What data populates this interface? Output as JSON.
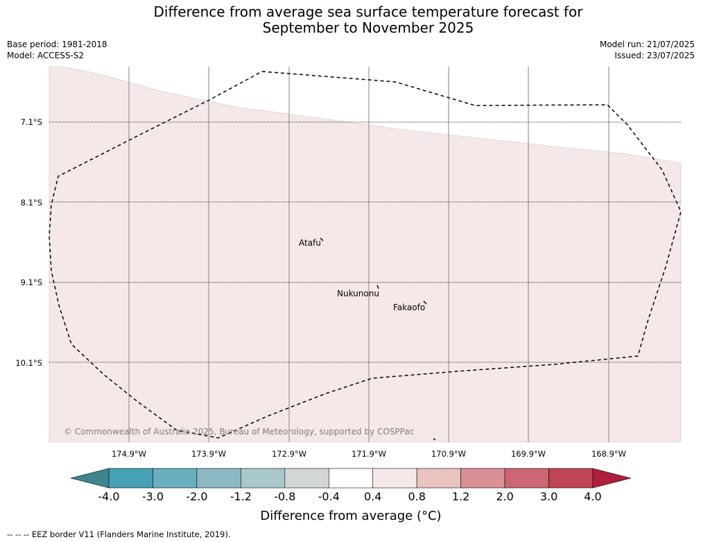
{
  "title": {
    "line1": "Difference from average sea surface temperature forecast for",
    "line2": "September to November 2025"
  },
  "meta_left": {
    "base_period": "Base period: 1981-2018",
    "model": "Model: ACCESS-S2"
  },
  "meta_right": {
    "model_run": "Model run: 21/07/2025",
    "issued": "Issued: 23/07/2025"
  },
  "map": {
    "latitude_ticks": [
      "7.1°S",
      "8.1°S",
      "9.1°S",
      "10.1°S"
    ],
    "longitude_ticks": [
      "174.9°W",
      "173.9°W",
      "172.9°W",
      "171.9°W",
      "170.9°W",
      "169.9°W",
      "168.9°W"
    ],
    "places": [
      "Atafu",
      "Nukunonu",
      "Fakaofo"
    ],
    "copyright": "© Commonwealth of Australia 2025, Bureau of Meteorology, supported by COSPPac",
    "sea_fill_color": "#f5e8e8"
  },
  "colorbar": {
    "title": "Difference from average (°C)",
    "labels": [
      "-4.0",
      "-3.0",
      "-2.0",
      "-1.2",
      "-0.8",
      "-0.4",
      "0.4",
      "0.8",
      "1.2",
      "2.0",
      "3.0",
      "4.0"
    ],
    "colors": [
      "#3f8590",
      "#45a2b4",
      "#6aafbd",
      "#8cb8c2",
      "#a9c8cc",
      "#d2d6d7",
      "#ffffff",
      "#f5e8e8",
      "#e8c3c0",
      "#d99096",
      "#cc6672",
      "#bf4456",
      "#b01e3c"
    ]
  },
  "legend": {
    "eez": "--  --  -- EEZ border V11 (Flanders Marine Institute, 2019)."
  }
}
